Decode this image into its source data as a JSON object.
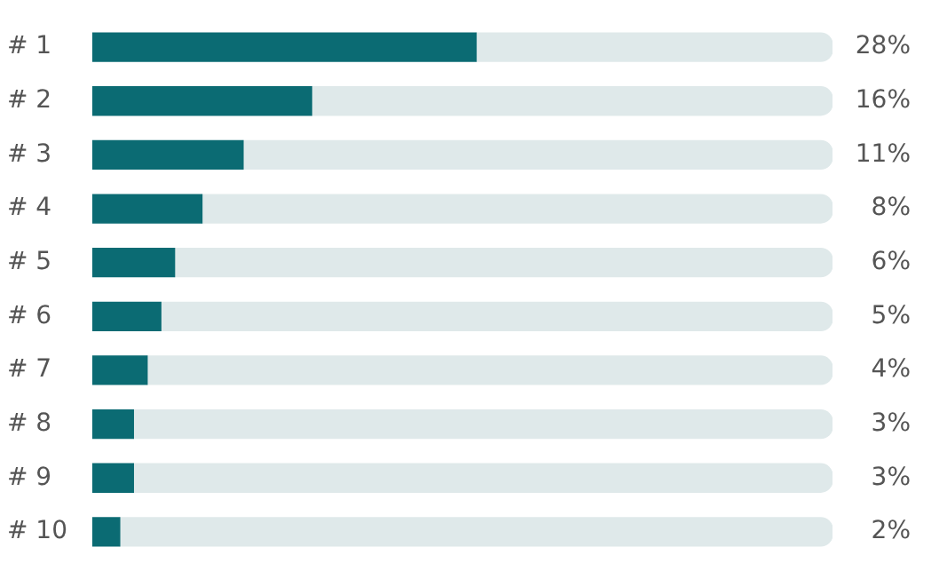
{
  "chart_data": {
    "type": "bar",
    "orientation": "horizontal",
    "categories": [
      "# 1",
      "# 2",
      "# 3",
      "# 4",
      "# 5",
      "# 6",
      "# 7",
      "# 8",
      "# 9",
      "# 10"
    ],
    "series": [
      {
        "color": "#0b6b73",
        "values": [
          28,
          16,
          11,
          8,
          6,
          5,
          4,
          3,
          3,
          2
        ],
        "value_labels": [
          "28%",
          "16%",
          "11%",
          "8%",
          "6%",
          "5%",
          "4%",
          "3%",
          "3%",
          "2%"
        ]
      },
      {
        "color": "#dfe9ea",
        "values": [
          26,
          38,
          43,
          46,
          48,
          49,
          50,
          51,
          51,
          52
        ]
      }
    ],
    "stacked": true,
    "xlim": [
      0,
      54
    ],
    "tick_labels": "y",
    "grid": false,
    "legend": false
  }
}
